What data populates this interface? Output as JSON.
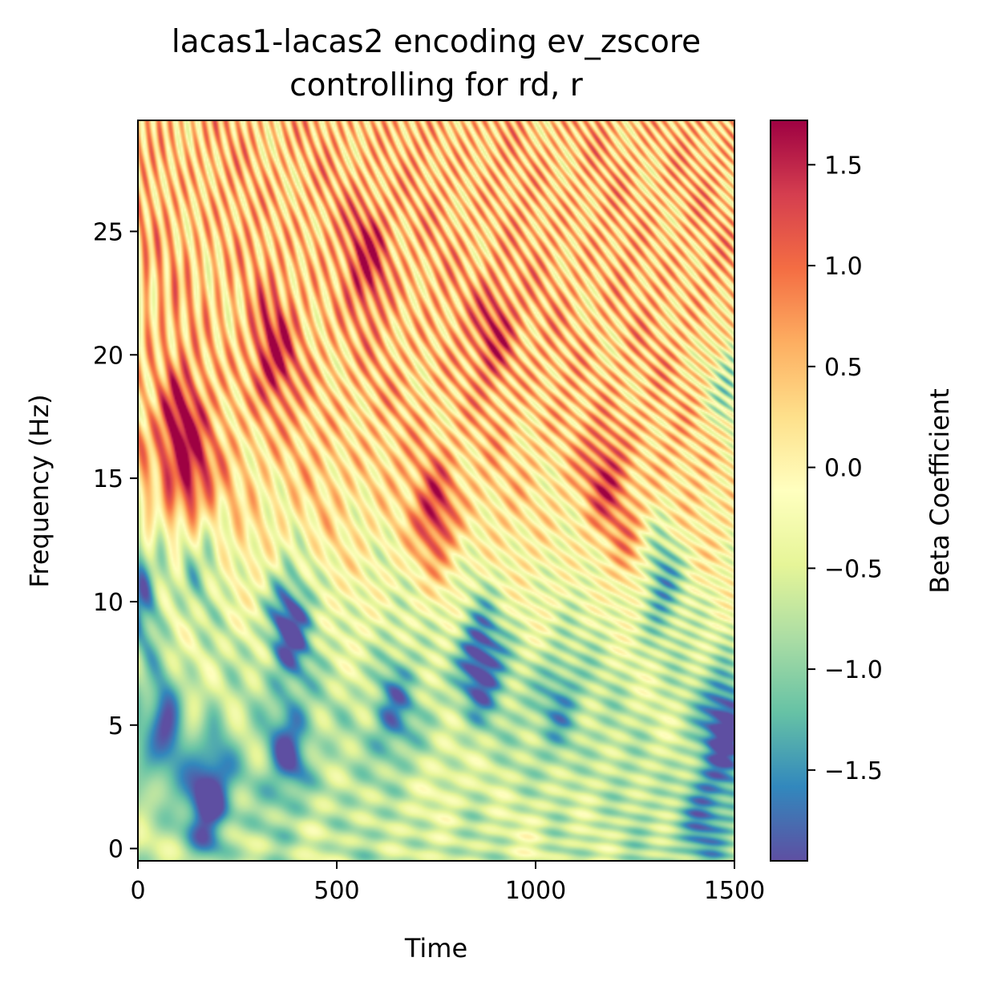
{
  "chart_data": {
    "type": "heatmap",
    "title": "lacas1-lacas2 encoding ev_zscore",
    "subtitle": "controlling for rd, r",
    "xlabel": "Time",
    "ylabel": "Frequency (Hz)",
    "xlim": [
      0,
      1500
    ],
    "ylim": [
      -0.5,
      29.5
    ],
    "xticks": [
      0,
      500,
      1000,
      1500
    ],
    "yticks": [
      0,
      5,
      10,
      15,
      20,
      25
    ],
    "colorbar": {
      "label": "Beta Coefficient",
      "colormap": "Spectral_r",
      "range": [
        -1.95,
        1.72
      ],
      "ticks": [
        -1.5,
        -1.0,
        -0.5,
        0.0,
        0.5,
        1.0,
        1.5
      ],
      "tick_labels": [
        "−1.5",
        "−1.0",
        "−0.5",
        "0.0",
        "0.5",
        "1.0",
        "1.5"
      ]
    },
    "blobs": [
      {
        "time": 180,
        "freq": 2.2,
        "value": -1.8
      },
      {
        "time": 380,
        "freq": 9,
        "value": -1.7
      },
      {
        "time": 380,
        "freq": 4,
        "value": -1.3
      },
      {
        "time": 860,
        "freq": 7.5,
        "value": -1.7
      },
      {
        "time": 640,
        "freq": 5.5,
        "value": -1.1
      },
      {
        "time": 1480,
        "freq": 5,
        "value": -1.6
      },
      {
        "time": 1420,
        "freq": 1,
        "value": -1.0
      },
      {
        "time": 10,
        "freq": 10.5,
        "value": -1.4
      },
      {
        "time": 60,
        "freq": 5,
        "value": -1.2
      },
      {
        "time": 1310,
        "freq": 11,
        "value": -1.2
      },
      {
        "time": 1490,
        "freq": 19,
        "value": -1.1
      },
      {
        "time": 150,
        "freq": 12,
        "value": -0.9
      },
      {
        "time": 1060,
        "freq": 6,
        "value": -0.9
      },
      {
        "time": 100,
        "freq": 17,
        "value": 1.4
      },
      {
        "time": 140,
        "freq": 14.5,
        "value": 1.2
      },
      {
        "time": 750,
        "freq": 13.5,
        "value": 1.3
      },
      {
        "time": 340,
        "freq": 20,
        "value": 1.1
      },
      {
        "time": 1180,
        "freq": 15,
        "value": 1.0
      },
      {
        "time": 580,
        "freq": 24,
        "value": 1.0
      },
      {
        "time": 770,
        "freq": 2.5,
        "value": 0.4
      },
      {
        "time": 1000,
        "freq": 0.5,
        "value": 0.3
      },
      {
        "time": 900,
        "freq": 21,
        "value": 0.9
      },
      {
        "time": 1250,
        "freq": 12,
        "value": 0.7
      }
    ]
  }
}
